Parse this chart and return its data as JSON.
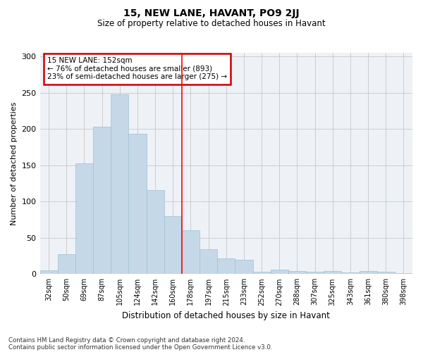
{
  "title": "15, NEW LANE, HAVANT, PO9 2JJ",
  "subtitle": "Size of property relative to detached houses in Havant",
  "xlabel": "Distribution of detached houses by size in Havant",
  "ylabel": "Number of detached properties",
  "categories": [
    "32sqm",
    "50sqm",
    "69sqm",
    "87sqm",
    "105sqm",
    "124sqm",
    "142sqm",
    "160sqm",
    "178sqm",
    "197sqm",
    "215sqm",
    "233sqm",
    "252sqm",
    "270sqm",
    "288sqm",
    "307sqm",
    "325sqm",
    "343sqm",
    "361sqm",
    "380sqm",
    "398sqm"
  ],
  "values": [
    5,
    27,
    153,
    203,
    248,
    193,
    116,
    80,
    60,
    34,
    22,
    20,
    3,
    6,
    4,
    3,
    4,
    2,
    4,
    3,
    1
  ],
  "bar_color": "#c5d8e8",
  "bar_edge_color": "#a0bfd0",
  "grid_color": "#cccccc",
  "background_color": "#eef2f7",
  "red_line_x": 7.5,
  "annotation_text": "15 NEW LANE: 152sqm\n← 76% of detached houses are smaller (893)\n23% of semi-detached houses are larger (275) →",
  "annotation_box_facecolor": "#ffffff",
  "annotation_box_edgecolor": "#cc0000",
  "ylim": [
    0,
    305
  ],
  "yticks": [
    0,
    50,
    100,
    150,
    200,
    250,
    300
  ],
  "title_fontsize": 10,
  "subtitle_fontsize": 8.5,
  "footnote1": "Contains HM Land Registry data © Crown copyright and database right 2024.",
  "footnote2": "Contains public sector information licensed under the Open Government Licence v3.0."
}
